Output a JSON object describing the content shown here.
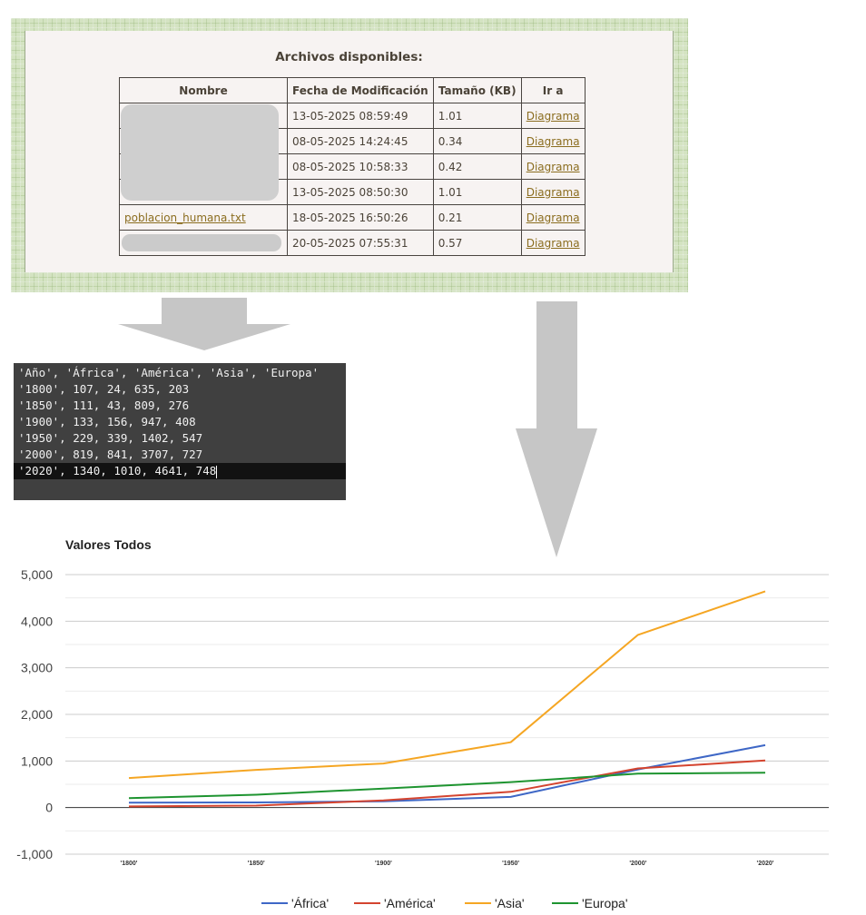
{
  "file_browser": {
    "title": "Archivos disponibles:",
    "columns": [
      "Nombre",
      "Fecha de Modificación",
      "Tamaño (KB)",
      "Ir a"
    ],
    "rows": [
      {
        "name": "",
        "date": "13-05-2025 08:59:49",
        "size": "1.01",
        "link": "Diagrama"
      },
      {
        "name": "",
        "date": "08-05-2025 14:24:45",
        "size": "0.34",
        "link": "Diagrama"
      },
      {
        "name": "",
        "date": "08-05-2025 10:58:33",
        "size": "0.42",
        "link": "Diagrama"
      },
      {
        "name": "",
        "date": "13-05-2025 08:50:30",
        "size": "1.01",
        "link": "Diagrama"
      },
      {
        "name": "poblacion_humana.txt",
        "date": "18-05-2025 16:50:26",
        "size": "0.21",
        "link": "Diagrama"
      },
      {
        "name": "",
        "date": "20-05-2025 07:55:31",
        "size": "0.57",
        "link": "Diagrama"
      }
    ]
  },
  "terminal": {
    "lines": [
      "'Año', 'África', 'América', 'Asia', 'Europa'",
      "'1800', 107, 24, 635, 203",
      "'1850', 111, 43, 809, 276",
      "'1900', 133, 156, 947, 408",
      "'1950', 229, 339, 1402, 547",
      "'2000', 819, 841, 3707, 727",
      "'2020', 1340, 1010, 4641, 748"
    ]
  },
  "colors": {
    "panel_bg": "#d4e3c2",
    "link": "#8b6d1f",
    "arrow": "#c6c6c6",
    "terminal_bg": "#404040"
  },
  "chart_data": {
    "type": "line",
    "title": "Valores Todos",
    "categories": [
      "'1800'",
      "'1850'",
      "'1900'",
      "'1950'",
      "'2000'",
      "'2020'"
    ],
    "series": [
      {
        "name": "'África'",
        "color": "#3e67c6",
        "values": [
          107,
          111,
          133,
          229,
          819,
          1340
        ]
      },
      {
        "name": "'América'",
        "color": "#d4442f",
        "values": [
          24,
          43,
          156,
          339,
          841,
          1010
        ]
      },
      {
        "name": "'Asia'",
        "color": "#f5a623",
        "values": [
          635,
          809,
          947,
          1402,
          3707,
          4641
        ]
      },
      {
        "name": "'Europa'",
        "color": "#1e9430",
        "values": [
          203,
          276,
          408,
          547,
          727,
          748
        ]
      }
    ],
    "ylim": [
      -1000,
      5000
    ],
    "yticks": [
      "5,000",
      "4,000",
      "3,000",
      "2,000",
      "1,000",
      "0",
      "-1,000"
    ],
    "ytick_values": [
      5000,
      4000,
      3000,
      2000,
      1000,
      0,
      -1000
    ],
    "grid": true,
    "legend_position": "bottom"
  }
}
